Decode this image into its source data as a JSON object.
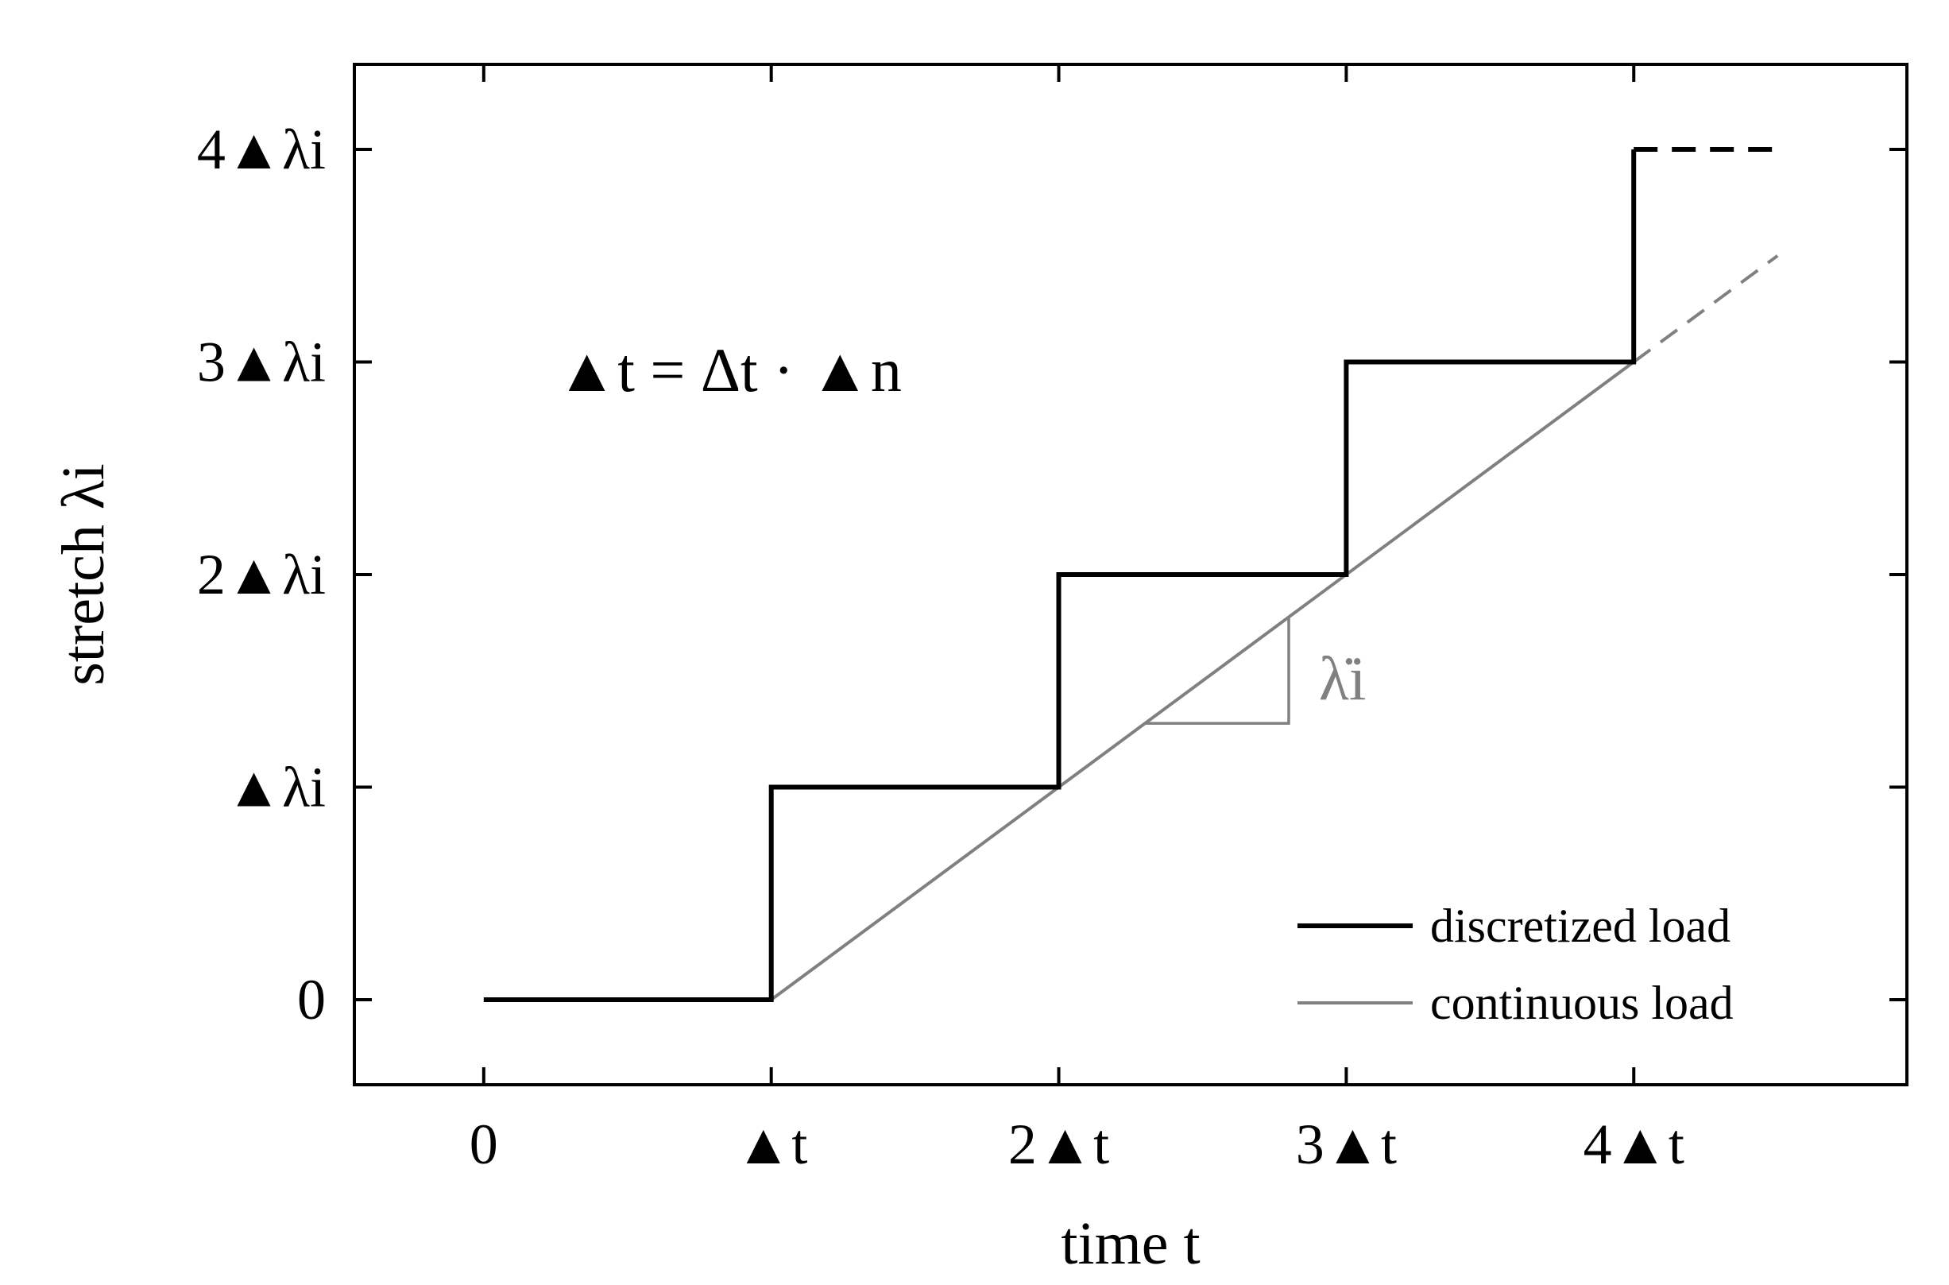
{
  "chart_data": {
    "type": "line",
    "xlabel": "time t",
    "ylabel": "stretch λi",
    "xlim": [
      -0.45,
      4.95
    ],
    "ylim": [
      -0.4,
      4.4
    ],
    "x_ticks": [
      {
        "value": 0,
        "label": "0"
      },
      {
        "value": 1,
        "label": "▲t"
      },
      {
        "value": 2,
        "label": "2▲t"
      },
      {
        "value": 3,
        "label": "3▲t"
      },
      {
        "value": 4,
        "label": "4▲t"
      }
    ],
    "y_ticks": [
      {
        "value": 0,
        "label": "0"
      },
      {
        "value": 1,
        "label": "▲λi"
      },
      {
        "value": 2,
        "label": "2▲λi"
      },
      {
        "value": 3,
        "label": "3▲λi"
      },
      {
        "value": 4,
        "label": "4▲λi"
      }
    ],
    "series": [
      {
        "name": "discretized load",
        "style": "step",
        "color": "#000000",
        "points": [
          [
            0,
            0
          ],
          [
            1,
            0
          ],
          [
            1,
            1
          ],
          [
            2,
            1
          ],
          [
            2,
            2
          ],
          [
            3,
            2
          ],
          [
            3,
            3
          ],
          [
            4,
            3
          ],
          [
            4,
            4
          ]
        ],
        "dashed_extension": [
          [
            4,
            4
          ],
          [
            4.5,
            4
          ]
        ]
      },
      {
        "name": "continuous load",
        "style": "line",
        "color": "#808080",
        "points": [
          [
            1,
            0
          ],
          [
            4,
            3
          ]
        ],
        "dashed_extension": [
          [
            4,
            3
          ],
          [
            4.5,
            3.5
          ]
        ]
      }
    ],
    "annotations": {
      "equation": "▲t = Δt · ▲n",
      "rate_label": "λ̇i"
    },
    "slope_triangle": {
      "color": "#808080",
      "points": [
        [
          2.3,
          1.3
        ],
        [
          2.8,
          1.3
        ],
        [
          2.8,
          1.8
        ]
      ]
    },
    "legend": {
      "position": "bottom-right",
      "entries": [
        {
          "label": "discretized load",
          "color": "#000000"
        },
        {
          "label": "continuous load",
          "color": "#808080"
        }
      ]
    },
    "grid": false
  }
}
